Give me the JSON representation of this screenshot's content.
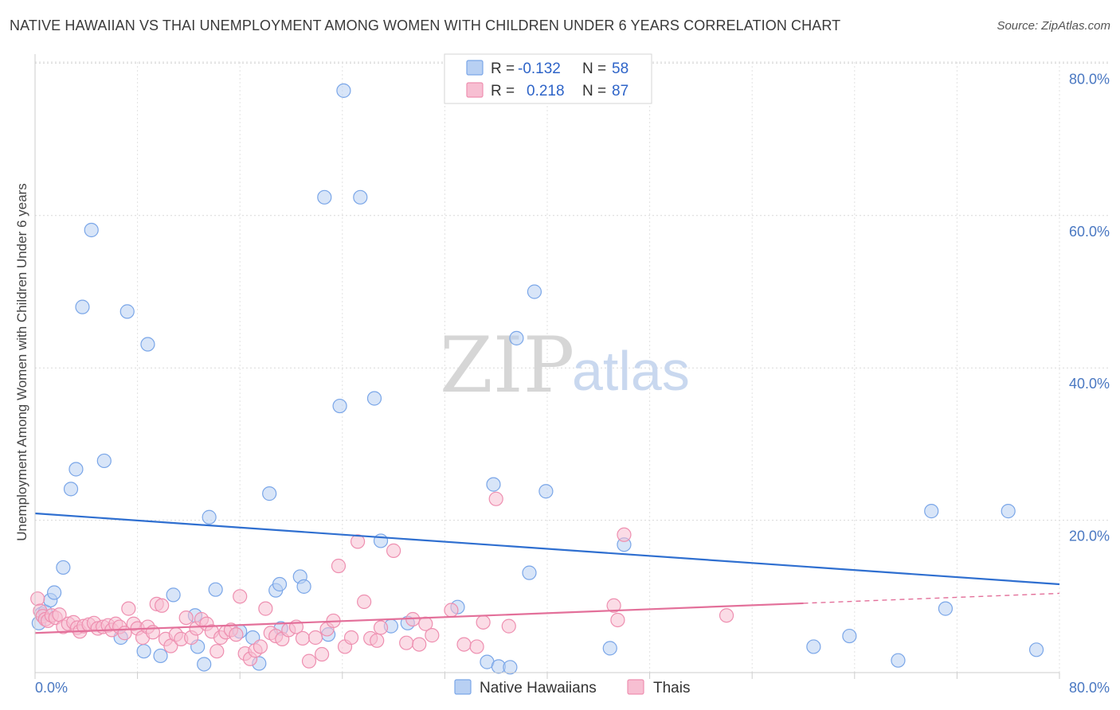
{
  "title": "NATIVE HAWAIIAN VS THAI UNEMPLOYMENT AMONG WOMEN WITH CHILDREN UNDER 6 YEARS CORRELATION CHART",
  "source": "Source: ZipAtlas.com",
  "watermark": {
    "zip": "ZIP",
    "atlas": "atlas"
  },
  "legend": {
    "rows": [
      {
        "r_label": "R =",
        "r_value": "-0.132",
        "n_label": "N =",
        "n_value": "58"
      },
      {
        "r_label": "R =",
        "r_value": "0.218",
        "n_label": "N =",
        "n_value": "87"
      }
    ]
  },
  "chart_data": {
    "type": "scatter",
    "title": "NATIVE HAWAIIAN VS THAI UNEMPLOYMENT AMONG WOMEN WITH CHILDREN UNDER 6 YEARS CORRELATION CHART",
    "xlabel": "",
    "ylabel": "Unemployment Among Women with Children Under 6 years",
    "xlim": [
      0,
      80
    ],
    "ylim": [
      0,
      82
    ],
    "x_tick_labels": [
      "0.0%",
      "80.0%"
    ],
    "y_ticks": [
      20,
      40,
      60,
      80
    ],
    "y_tick_labels": [
      "20.0%",
      "40.0%",
      "60.0%",
      "80.0%"
    ],
    "grid": true,
    "legend_position": "top-center",
    "series": [
      {
        "name": "Native Hawaiians",
        "color": "#7aa6e8",
        "fill": "#b8d0f3",
        "trend": {
          "x": [
            0,
            80
          ],
          "y": [
            20.9,
            11.6
          ]
        },
        "points": [
          [
            0.5,
            7.7
          ],
          [
            0.8,
            8.0
          ],
          [
            1.2,
            9.5
          ],
          [
            1.5,
            10.5
          ],
          [
            2.2,
            13.8
          ],
          [
            2.8,
            24.1
          ],
          [
            3.2,
            26.7
          ],
          [
            3.7,
            48.0
          ],
          [
            4.4,
            58.1
          ],
          [
            5.4,
            27.8
          ],
          [
            6.7,
            4.6
          ],
          [
            7.2,
            47.4
          ],
          [
            8.5,
            2.8
          ],
          [
            8.8,
            43.1
          ],
          [
            9.8,
            2.2
          ],
          [
            10.8,
            10.2
          ],
          [
            12.5,
            7.5
          ],
          [
            12.7,
            3.4
          ],
          [
            13.2,
            1.1
          ],
          [
            13.6,
            20.4
          ],
          [
            14.1,
            10.9
          ],
          [
            16.0,
            5.4
          ],
          [
            17.0,
            4.6
          ],
          [
            17.5,
            1.2
          ],
          [
            18.3,
            23.5
          ],
          [
            18.8,
            10.8
          ],
          [
            19.1,
            11.6
          ],
          [
            19.2,
            5.8
          ],
          [
            20.7,
            12.6
          ],
          [
            21.0,
            11.3
          ],
          [
            22.6,
            62.4
          ],
          [
            22.9,
            5.0
          ],
          [
            23.8,
            35.0
          ],
          [
            24.1,
            76.4
          ],
          [
            25.4,
            62.4
          ],
          [
            26.5,
            36.0
          ],
          [
            27.0,
            17.3
          ],
          [
            27.8,
            6.1
          ],
          [
            29.1,
            6.5
          ],
          [
            33.0,
            8.6
          ],
          [
            35.3,
            1.4
          ],
          [
            35.8,
            24.7
          ],
          [
            36.2,
            0.8
          ],
          [
            37.1,
            0.7
          ],
          [
            37.6,
            43.9
          ],
          [
            38.6,
            13.1
          ],
          [
            39.0,
            50.0
          ],
          [
            39.9,
            23.8
          ],
          [
            44.9,
            3.2
          ],
          [
            46.0,
            16.8
          ],
          [
            60.8,
            3.4
          ],
          [
            63.6,
            4.8
          ],
          [
            67.4,
            1.6
          ],
          [
            70.0,
            21.2
          ],
          [
            71.1,
            8.4
          ],
          [
            76.0,
            21.2
          ],
          [
            78.2,
            3.0
          ],
          [
            0.3,
            6.5
          ]
        ]
      },
      {
        "name": "Thais",
        "color": "#ee8fb0",
        "fill": "#f7bfd2",
        "trend": {
          "x": [
            0,
            60
          ],
          "y": [
            5.2,
            9.1
          ]
        },
        "trend_dashed": {
          "x": [
            60,
            80
          ],
          "y": [
            9.1,
            10.4
          ]
        },
        "points": [
          [
            0.2,
            9.7
          ],
          [
            0.4,
            8.1
          ],
          [
            0.6,
            7.4
          ],
          [
            0.8,
            7.0
          ],
          [
            1.0,
            6.8
          ],
          [
            1.3,
            7.5
          ],
          [
            1.6,
            7.2
          ],
          [
            1.9,
            7.6
          ],
          [
            2.2,
            6.0
          ],
          [
            2.6,
            6.4
          ],
          [
            3.0,
            6.6
          ],
          [
            3.3,
            5.9
          ],
          [
            3.5,
            5.4
          ],
          [
            3.8,
            6.1
          ],
          [
            4.2,
            6.3
          ],
          [
            4.6,
            6.5
          ],
          [
            4.9,
            5.8
          ],
          [
            5.3,
            6.0
          ],
          [
            5.7,
            6.2
          ],
          [
            6.0,
            5.6
          ],
          [
            6.3,
            6.4
          ],
          [
            6.6,
            6.0
          ],
          [
            7.0,
            5.2
          ],
          [
            7.3,
            8.4
          ],
          [
            7.7,
            6.4
          ],
          [
            8.0,
            5.8
          ],
          [
            8.4,
            4.6
          ],
          [
            8.8,
            6.0
          ],
          [
            9.2,
            5.3
          ],
          [
            9.5,
            9.0
          ],
          [
            9.9,
            8.8
          ],
          [
            10.2,
            4.4
          ],
          [
            10.6,
            3.5
          ],
          [
            11.0,
            5.0
          ],
          [
            11.4,
            4.4
          ],
          [
            11.8,
            7.2
          ],
          [
            12.2,
            4.6
          ],
          [
            12.6,
            5.8
          ],
          [
            13.0,
            7.0
          ],
          [
            13.4,
            6.4
          ],
          [
            13.8,
            5.4
          ],
          [
            14.2,
            2.8
          ],
          [
            14.5,
            4.6
          ],
          [
            14.9,
            5.3
          ],
          [
            15.3,
            5.6
          ],
          [
            15.7,
            5.0
          ],
          [
            16.0,
            10.0
          ],
          [
            16.4,
            2.5
          ],
          [
            16.8,
            1.8
          ],
          [
            17.2,
            2.9
          ],
          [
            17.6,
            3.4
          ],
          [
            18.0,
            8.4
          ],
          [
            18.4,
            5.2
          ],
          [
            18.8,
            4.8
          ],
          [
            19.3,
            4.4
          ],
          [
            19.8,
            5.6
          ],
          [
            20.4,
            6.0
          ],
          [
            20.9,
            4.5
          ],
          [
            21.4,
            1.5
          ],
          [
            21.9,
            4.6
          ],
          [
            22.4,
            2.4
          ],
          [
            22.8,
            5.7
          ],
          [
            23.3,
            6.8
          ],
          [
            23.7,
            14.0
          ],
          [
            24.2,
            3.4
          ],
          [
            24.7,
            4.6
          ],
          [
            25.2,
            17.2
          ],
          [
            25.7,
            9.3
          ],
          [
            26.2,
            4.5
          ],
          [
            27.0,
            5.9
          ],
          [
            28.0,
            16.0
          ],
          [
            29.0,
            3.9
          ],
          [
            29.5,
            7.0
          ],
          [
            30.0,
            3.7
          ],
          [
            30.5,
            6.4
          ],
          [
            31.0,
            4.9
          ],
          [
            32.5,
            8.2
          ],
          [
            33.5,
            3.7
          ],
          [
            34.5,
            3.4
          ],
          [
            36.0,
            22.8
          ],
          [
            37.0,
            6.1
          ],
          [
            46.0,
            18.1
          ],
          [
            45.5,
            6.9
          ],
          [
            45.2,
            8.8
          ],
          [
            54.0,
            7.5
          ],
          [
            26.7,
            4.2
          ],
          [
            35.0,
            6.6
          ]
        ]
      }
    ]
  }
}
